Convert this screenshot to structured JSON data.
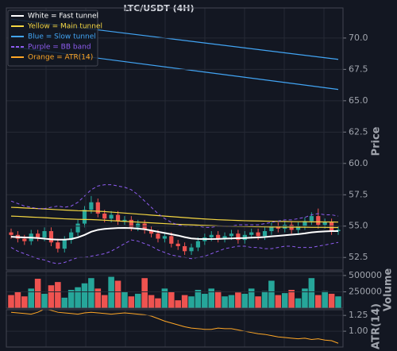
{
  "chart_data": {
    "type": "candlestick",
    "title": "LTC/USDT (4H)",
    "y_label": "Price",
    "up_color": "#26a69a",
    "down_color": "#ef5350",
    "ylim": [
      51.5,
      72.4
    ],
    "yticks": [
      52.5,
      {
        "value": 55,
        "label": "55.0"
      },
      57.5,
      {
        "value": 60,
        "label": "60.0"
      },
      62.5,
      {
        "value": 65,
        "label": "65.0"
      },
      67.5,
      {
        "value": 70,
        "label": "70.0"
      }
    ],
    "grid": true,
    "legend": "upper left",
    "open": [
      54.5,
      54.3,
      54.0,
      53.8,
      54.4,
      54.1,
      54.6,
      53.7,
      53.2,
      53.9,
      54.5,
      55.2,
      56.3,
      56.9,
      56.0,
      55.6,
      55.9,
      55.4,
      55.5,
      54.9,
      55.2,
      54.7,
      54.4,
      54.0,
      54.2,
      53.6,
      53.4,
      53.0,
      53.3,
      53.8,
      54.1,
      54.3,
      54.0,
      54.2,
      54.4,
      53.9,
      54.3,
      54.5,
      54.2,
      54.6,
      55.0,
      54.8,
      55.1,
      54.7,
      55.0,
      55.4,
      55.8,
      55.1,
      55.3,
      54.6
    ],
    "high": [
      54.8,
      54.6,
      54.3,
      54.7,
      54.7,
      54.9,
      54.9,
      54.0,
      54.2,
      54.8,
      55.5,
      56.6,
      57.4,
      57.2,
      56.3,
      56.2,
      56.2,
      55.8,
      55.8,
      55.5,
      55.5,
      55.0,
      54.7,
      54.5,
      54.5,
      53.9,
      53.7,
      53.6,
      54.1,
      54.4,
      54.6,
      54.6,
      54.5,
      54.7,
      54.7,
      54.6,
      54.8,
      54.8,
      54.9,
      55.3,
      55.3,
      55.4,
      55.4,
      55.3,
      55.7,
      56.1,
      56.4,
      55.6,
      55.6,
      55.0
    ],
    "low": [
      54.0,
      53.7,
      53.5,
      53.5,
      53.8,
      53.8,
      53.4,
      52.9,
      52.9,
      53.6,
      54.2,
      54.9,
      56.0,
      55.7,
      55.3,
      55.3,
      55.1,
      55.1,
      54.6,
      54.6,
      54.4,
      54.1,
      53.7,
      53.7,
      53.3,
      53.1,
      52.7,
      52.7,
      53.0,
      53.5,
      53.8,
      53.7,
      53.7,
      53.9,
      53.6,
      53.6,
      54.0,
      53.9,
      53.9,
      54.3,
      54.5,
      54.5,
      54.4,
      54.4,
      54.7,
      55.1,
      54.8,
      54.8,
      54.3,
      54.3
    ],
    "close": [
      54.3,
      54.0,
      53.8,
      54.4,
      54.1,
      54.6,
      53.7,
      53.2,
      53.9,
      54.5,
      55.2,
      56.3,
      56.9,
      56.0,
      55.6,
      55.9,
      55.4,
      55.5,
      54.9,
      55.2,
      54.7,
      54.4,
      54.0,
      54.2,
      53.6,
      53.4,
      53.0,
      53.3,
      53.8,
      54.1,
      54.3,
      54.0,
      54.2,
      54.4,
      53.9,
      54.3,
      54.5,
      54.2,
      54.6,
      55.0,
      54.8,
      55.1,
      54.7,
      55.0,
      55.4,
      55.8,
      55.1,
      55.3,
      54.6,
      54.7
    ],
    "series": [
      {
        "name": "White = Fast tunnel",
        "color": "#ffffff",
        "width": 2,
        "values": [
          54.15,
          54.12,
          54.1,
          54.08,
          54.05,
          54.0,
          53.95,
          53.92,
          53.92,
          53.97,
          54.1,
          54.3,
          54.55,
          54.7,
          54.78,
          54.82,
          54.85,
          54.86,
          54.84,
          54.8,
          54.75,
          54.65,
          54.55,
          54.45,
          54.35,
          54.25,
          54.12,
          54.02,
          53.98,
          53.97,
          53.97,
          53.98,
          54.0,
          54.02,
          54.04,
          54.05,
          54.08,
          54.1,
          54.13,
          54.18,
          54.22,
          54.27,
          54.32,
          54.36,
          54.42,
          54.5,
          54.55,
          54.58,
          54.6,
          54.6
        ]
      },
      {
        "name": "Yellow = Main tunnel",
        "color": "#f5d742",
        "width": 1.2,
        "upper": [
          56.5,
          56.48,
          56.45,
          56.42,
          56.4,
          56.37,
          56.34,
          56.31,
          56.28,
          56.26,
          56.23,
          56.22,
          56.21,
          56.19,
          56.16,
          56.12,
          56.08,
          56.04,
          56.0,
          55.96,
          55.92,
          55.88,
          55.84,
          55.8,
          55.76,
          55.72,
          55.68,
          55.64,
          55.6,
          55.57,
          55.54,
          55.51,
          55.49,
          55.47,
          55.45,
          55.43,
          55.42,
          55.41,
          55.4,
          55.39,
          55.38,
          55.37,
          55.36,
          55.35,
          55.35,
          55.34,
          55.34,
          55.33,
          55.33,
          55.32
        ],
        "lower": [
          55.8,
          55.78,
          55.75,
          55.72,
          55.7,
          55.67,
          55.64,
          55.61,
          55.58,
          55.56,
          55.54,
          55.53,
          55.52,
          55.5,
          55.47,
          55.44,
          55.41,
          55.38,
          55.35,
          55.32,
          55.29,
          55.26,
          55.23,
          55.2,
          55.17,
          55.14,
          55.12,
          55.1,
          55.08,
          55.06,
          55.04,
          55.02,
          55.0,
          54.99,
          54.98,
          54.97,
          54.96,
          54.95,
          54.94,
          54.93,
          54.93,
          54.92,
          54.92,
          54.91,
          54.91,
          54.9,
          54.9,
          54.9,
          54.89,
          54.89
        ]
      },
      {
        "name": "Blue = Slow tunnel",
        "color": "#42a5f5",
        "width": 1.2,
        "x": [
          0,
          49
        ],
        "upper": [
          71.5,
          68.3
        ],
        "lower": [
          69.3,
          65.9
        ]
      },
      {
        "name": "Purple = BB band",
        "color": "#8e5cf0",
        "width": 1,
        "style": "dashed",
        "upper": [
          57.0,
          56.8,
          56.6,
          56.5,
          56.4,
          56.4,
          56.5,
          56.6,
          56.5,
          56.6,
          56.9,
          57.4,
          57.9,
          58.2,
          58.3,
          58.3,
          58.2,
          58.1,
          57.9,
          57.5,
          57.0,
          56.5,
          56.0,
          55.6,
          55.3,
          55.1,
          55.0,
          55.0,
          55.0,
          54.9,
          54.9,
          55.0,
          55.0,
          55.0,
          55.1,
          55.1,
          55.1,
          55.1,
          55.2,
          55.3,
          55.4,
          55.5,
          55.5,
          55.6,
          55.7,
          55.9,
          56.0,
          55.9,
          55.9,
          55.8
        ],
        "lower": [
          53.3,
          53.0,
          52.8,
          52.6,
          52.4,
          52.3,
          52.1,
          52.0,
          52.1,
          52.3,
          52.5,
          52.5,
          52.6,
          52.7,
          52.8,
          53.0,
          53.3,
          53.6,
          53.9,
          53.8,
          53.6,
          53.4,
          53.1,
          52.9,
          52.7,
          52.6,
          52.5,
          52.4,
          52.5,
          52.6,
          52.8,
          53.0,
          53.2,
          53.3,
          53.4,
          53.4,
          53.3,
          53.3,
          53.2,
          53.2,
          53.3,
          53.4,
          53.4,
          53.3,
          53.3,
          53.3,
          53.4,
          53.5,
          53.6,
          53.7
        ]
      }
    ],
    "volume": {
      "y_label": "Volume",
      "ylim": [
        0,
        560000
      ],
      "yticks": [
        250000,
        500000
      ],
      "values": [
        200000,
        250000,
        180000,
        300000,
        450000,
        220000,
        350000,
        400000,
        160000,
        280000,
        320000,
        380000,
        460000,
        300000,
        200000,
        480000,
        420000,
        250000,
        180000,
        220000,
        460000,
        200000,
        150000,
        300000,
        250000,
        120000,
        200000,
        180000,
        280000,
        220000,
        300000,
        260000,
        180000,
        200000,
        240000,
        220000,
        300000,
        180000,
        260000,
        420000,
        200000,
        230000,
        280000,
        150000,
        300000,
        460000,
        200000,
        260000,
        220000,
        180000
      ]
    },
    "atr": {
      "name": "Orange = ATR(14)",
      "y_label": "ATR(14)",
      "color": "#ffa726",
      "ylim": [
        0.75,
        1.34
      ],
      "yticks": [
        {
          "value": 1,
          "label": "1.00"
        },
        1.25
      ],
      "values": [
        1.3,
        1.29,
        1.28,
        1.27,
        1.3,
        1.35,
        1.33,
        1.3,
        1.29,
        1.28,
        1.27,
        1.29,
        1.3,
        1.29,
        1.28,
        1.27,
        1.28,
        1.29,
        1.28,
        1.27,
        1.26,
        1.24,
        1.2,
        1.16,
        1.13,
        1.1,
        1.07,
        1.05,
        1.04,
        1.03,
        1.03,
        1.05,
        1.04,
        1.04,
        1.02,
        1.0,
        0.98,
        0.96,
        0.95,
        0.93,
        0.91,
        0.9,
        0.89,
        0.88,
        0.89,
        0.87,
        0.88,
        0.86,
        0.85,
        0.81
      ]
    }
  }
}
